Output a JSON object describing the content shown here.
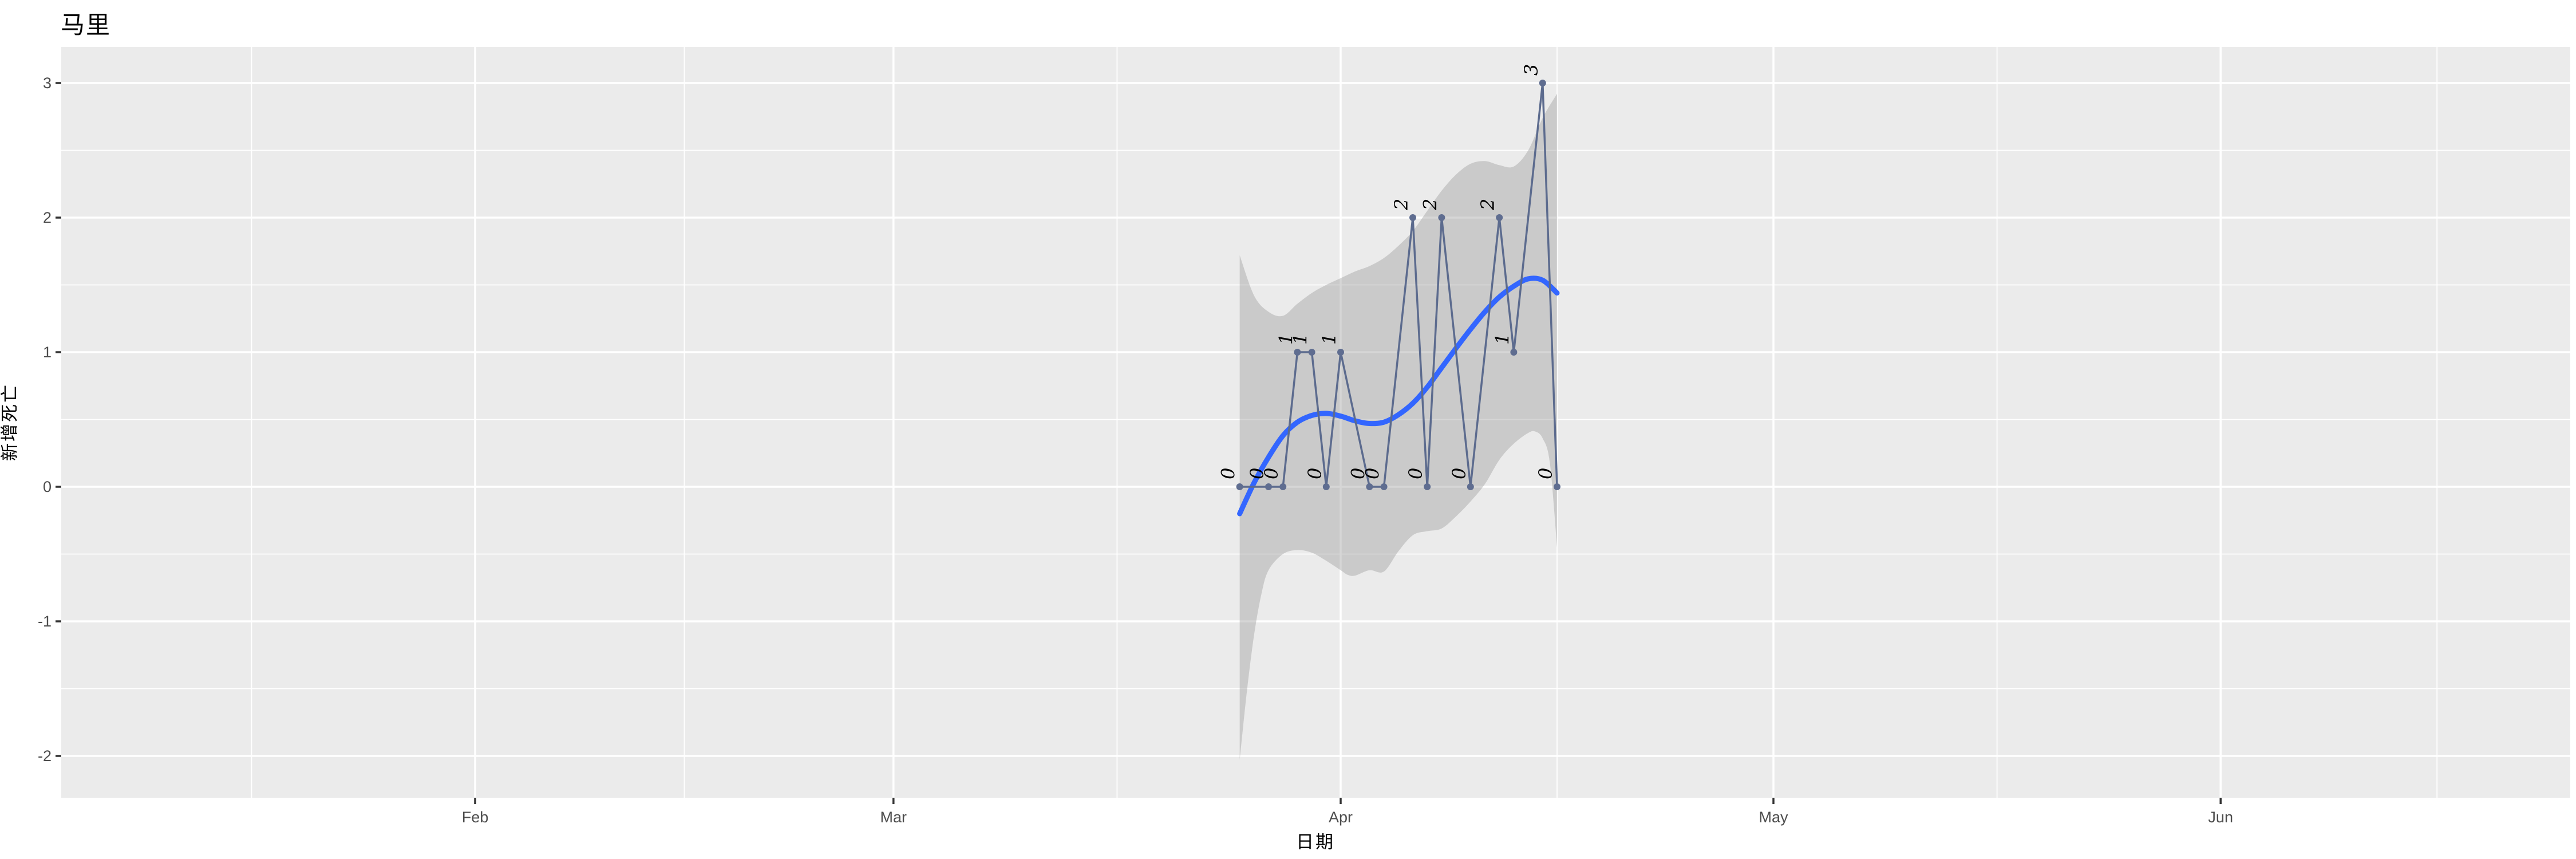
{
  "header": {
    "title": "马里"
  },
  "axes": {
    "x_title": "日期",
    "y_title": "新增死亡",
    "x_ticks": [
      {
        "label": "Feb",
        "date": "2020-02-01"
      },
      {
        "label": "Mar",
        "date": "2020-03-01"
      },
      {
        "label": "Apr",
        "date": "2020-04-01"
      },
      {
        "label": "May",
        "date": "2020-05-01"
      },
      {
        "label": "Jun",
        "date": "2020-06-01"
      }
    ],
    "x_minor_days_since_2020_04_01": [
      -75.5,
      -45.5,
      -15.5,
      15,
      45.5,
      76
    ],
    "y_ticks": [
      {
        "label": "3",
        "value": 3
      },
      {
        "label": "2",
        "value": 2
      },
      {
        "label": "1",
        "value": 1
      },
      {
        "label": "0",
        "value": 0
      },
      {
        "label": "-1",
        "value": -1
      },
      {
        "label": "-2",
        "value": -2
      }
    ],
    "y_minor_values": [
      2.5,
      1.5,
      0.5,
      -0.5,
      -1.5
    ]
  },
  "chart_data": {
    "type": "line",
    "title": "马里",
    "xlabel": "日期",
    "ylabel": "新增死亡",
    "x_range_dates": [
      "2020-01-03",
      "2020-06-25"
    ],
    "ylim": [
      -2.31,
      3.27
    ],
    "grid": "major-and-minor, white on grey panel",
    "legend_position": "none",
    "series": [
      {
        "name": "新增死亡 daily points (labelled with value, rotated text)",
        "points": [
          {
            "date": "2020-03-25",
            "value": 0,
            "label": "0"
          },
          {
            "date": "2020-03-27",
            "value": 0,
            "label": "0"
          },
          {
            "date": "2020-03-28",
            "value": 0,
            "label": "0"
          },
          {
            "date": "2020-03-29",
            "value": 1,
            "label": "1"
          },
          {
            "date": "2020-03-30",
            "value": 1,
            "label": "1"
          },
          {
            "date": "2020-03-31",
            "value": 0,
            "label": "0"
          },
          {
            "date": "2020-04-01",
            "value": 1,
            "label": "1"
          },
          {
            "date": "2020-04-03",
            "value": 0,
            "label": "0"
          },
          {
            "date": "2020-04-04",
            "value": 0,
            "label": "0"
          },
          {
            "date": "2020-04-06",
            "value": 2,
            "label": "2"
          },
          {
            "date": "2020-04-07",
            "value": 0,
            "label": "0"
          },
          {
            "date": "2020-04-08",
            "value": 2,
            "label": "2"
          },
          {
            "date": "2020-04-10",
            "value": 0,
            "label": "0"
          },
          {
            "date": "2020-04-12",
            "value": 2,
            "label": "2"
          },
          {
            "date": "2020-04-13",
            "value": 1,
            "label": "1"
          },
          {
            "date": "2020-04-15",
            "value": 3,
            "label": "3"
          },
          {
            "date": "2020-04-16",
            "value": 0,
            "label": "0"
          }
        ]
      }
    ],
    "smooth_line_days_since_2020_04_01": [
      [
        -7,
        -0.2
      ],
      [
        -6,
        0.03
      ],
      [
        -5,
        0.22
      ],
      [
        -4,
        0.38
      ],
      [
        -3,
        0.48
      ],
      [
        -2,
        0.53
      ],
      [
        -1,
        0.545
      ],
      [
        0,
        0.525
      ],
      [
        1,
        0.49
      ],
      [
        2,
        0.47
      ],
      [
        3,
        0.48
      ],
      [
        4,
        0.535
      ],
      [
        5,
        0.62
      ],
      [
        6,
        0.74
      ],
      [
        7,
        0.885
      ],
      [
        8,
        1.03
      ],
      [
        9,
        1.17
      ],
      [
        10,
        1.3
      ],
      [
        11,
        1.41
      ],
      [
        12,
        1.49
      ],
      [
        13,
        1.545
      ],
      [
        14,
        1.535
      ],
      [
        15,
        1.44
      ]
    ],
    "ribbon_upper_days_since_2020_04_01": [
      [
        -7,
        1.72
      ],
      [
        -6,
        1.42
      ],
      [
        -5,
        1.3
      ],
      [
        -4,
        1.27
      ],
      [
        -3,
        1.36
      ],
      [
        -2,
        1.44
      ],
      [
        -1,
        1.5
      ],
      [
        0,
        1.55
      ],
      [
        1,
        1.6
      ],
      [
        2,
        1.64
      ],
      [
        3,
        1.7
      ],
      [
        4,
        1.79
      ],
      [
        5,
        1.9
      ],
      [
        6,
        2.05
      ],
      [
        7,
        2.2
      ],
      [
        8,
        2.32
      ],
      [
        9,
        2.4
      ],
      [
        10,
        2.42
      ],
      [
        11,
        2.39
      ],
      [
        12,
        2.38
      ],
      [
        13,
        2.5
      ],
      [
        14,
        2.74
      ],
      [
        15,
        2.92
      ]
    ],
    "ribbon_lower_days_since_2020_04_01": [
      [
        -7,
        -2.03
      ],
      [
        -6.5,
        -1.52
      ],
      [
        -6,
        -1.1
      ],
      [
        -5.5,
        -0.8
      ],
      [
        -5,
        -0.62
      ],
      [
        -4,
        -0.5
      ],
      [
        -3,
        -0.47
      ],
      [
        -2,
        -0.49
      ],
      [
        -1,
        -0.55
      ],
      [
        0,
        -0.62
      ],
      [
        0.5,
        -0.655
      ],
      [
        1,
        -0.66
      ],
      [
        2,
        -0.62
      ],
      [
        3,
        -0.63
      ],
      [
        4,
        -0.48
      ],
      [
        5,
        -0.36
      ],
      [
        6,
        -0.33
      ],
      [
        7,
        -0.31
      ],
      [
        8,
        -0.22
      ],
      [
        9,
        -0.11
      ],
      [
        10,
        0.02
      ],
      [
        11,
        0.2
      ],
      [
        12,
        0.32
      ],
      [
        13,
        0.4
      ],
      [
        13.5,
        0.41
      ],
      [
        14,
        0.36
      ],
      [
        14.5,
        0.18
      ],
      [
        15,
        -0.45
      ]
    ],
    "colors": {
      "panel_background": "#EBEBEB",
      "gridline": "#FFFFFF",
      "ribbon_fill": "#999999",
      "ribbon_opacity": 0.4,
      "smooth_line": "#3366FF",
      "data_line": "#5C6B8E",
      "data_point": "#5F6D90",
      "point_label_text": "#000000",
      "tick_label_text": "#4D4D4D",
      "tick_mark": "#333333",
      "title_text": "#000000"
    }
  }
}
